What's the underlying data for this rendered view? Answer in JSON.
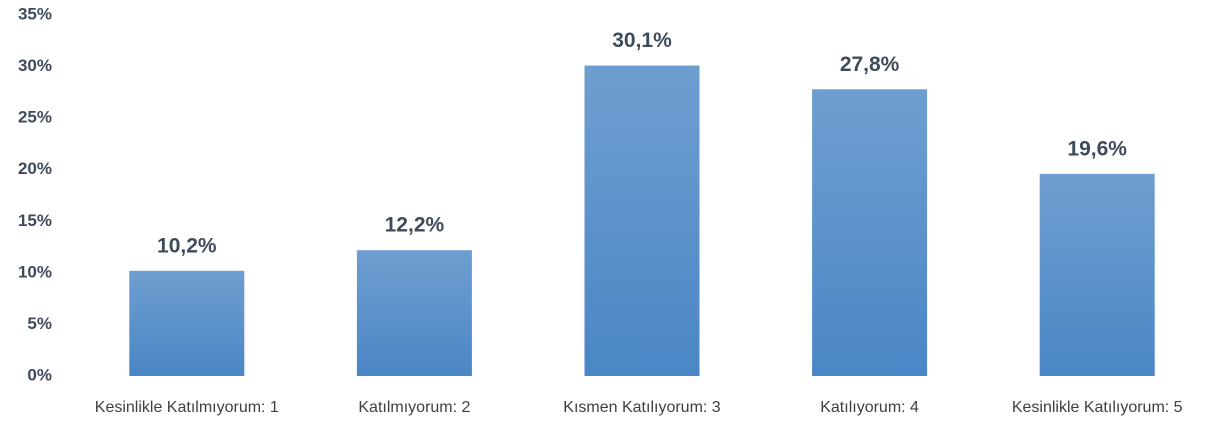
{
  "chart_data": {
    "type": "bar",
    "categories": [
      "Kesinlikle Katılmıyorum: 1",
      "Katılmıyorum: 2",
      "Kısmen Katılıyorum: 3",
      "Katılıyorum: 4",
      "Kesinlikle Katılıyorum: 5"
    ],
    "values": [
      10.2,
      12.2,
      30.1,
      27.8,
      19.6
    ],
    "value_labels": [
      "10,2%",
      "12,2%",
      "30,1%",
      "27,8%",
      "19,6%"
    ],
    "color": "#4a86c5",
    "ylim": [
      0,
      35
    ],
    "yticks": [
      {
        "value": 0,
        "label": "0%"
      },
      {
        "value": 5,
        "label": "5%"
      },
      {
        "value": 10,
        "label": "10%"
      },
      {
        "value": 15,
        "label": "15%"
      },
      {
        "value": 20,
        "label": "20%"
      },
      {
        "value": 25,
        "label": "25%"
      },
      {
        "value": 30,
        "label": "30%"
      },
      {
        "value": 35,
        "label": "35%"
      }
    ],
    "grid": false
  }
}
